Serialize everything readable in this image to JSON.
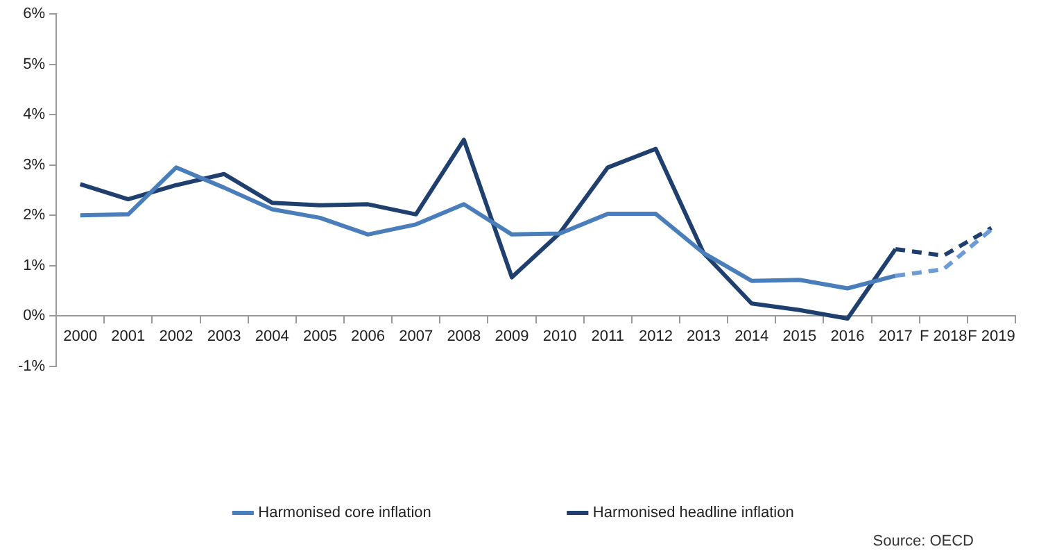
{
  "chart_data": {
    "type": "line",
    "categories": [
      "2000",
      "2001",
      "2002",
      "2003",
      "2004",
      "2005",
      "2006",
      "2007",
      "2008",
      "2009",
      "2010",
      "2011",
      "2012",
      "2013",
      "2014",
      "2015",
      "2016",
      "2017",
      "F 2018",
      "F 2019"
    ],
    "series": [
      {
        "name": "Harmonised core inflation",
        "color": "#4a7ebb",
        "values": [
          2.0,
          2.02,
          2.95,
          2.55,
          2.12,
          1.95,
          1.62,
          1.82,
          2.22,
          1.62,
          1.64,
          2.03,
          2.03,
          1.25,
          0.7,
          0.72,
          0.55,
          0.8,
          null,
          null
        ]
      },
      {
        "name": "Harmonised headline inflation",
        "color": "#1f3f6e",
        "values": [
          2.62,
          2.32,
          2.6,
          2.82,
          2.25,
          2.2,
          2.22,
          2.02,
          3.5,
          0.77,
          1.65,
          2.95,
          3.32,
          1.25,
          0.25,
          0.12,
          -0.05,
          1.33,
          null,
          null
        ]
      },
      {
        "color": "#6d9bd6",
        "line_style": "dashed",
        "values": [
          null,
          null,
          null,
          null,
          null,
          null,
          null,
          null,
          null,
          null,
          null,
          null,
          null,
          null,
          null,
          null,
          null,
          0.8,
          0.93,
          1.72
        ]
      },
      {
        "color": "#1f3f6e",
        "line_style": "dashed",
        "values": [
          null,
          null,
          null,
          null,
          null,
          null,
          null,
          null,
          null,
          null,
          null,
          null,
          null,
          null,
          null,
          null,
          null,
          1.33,
          1.2,
          1.75
        ]
      }
    ],
    "ylim": [
      -1,
      6
    ],
    "yticks": [
      {
        "value": -1,
        "label": "-1%"
      },
      {
        "value": 0,
        "label": "0%"
      },
      {
        "value": 1,
        "label": "1%"
      },
      {
        "value": 2,
        "label": "2%"
      },
      {
        "value": 3,
        "label": "3%"
      },
      {
        "value": 4,
        "label": "4%"
      },
      {
        "value": 5,
        "label": "5%"
      },
      {
        "value": 6,
        "label": "6%"
      }
    ],
    "grid": false,
    "legend": "bottom",
    "marker": "none",
    "line_style": "solid",
    "annotations": [
      "Source: OECD"
    ]
  }
}
